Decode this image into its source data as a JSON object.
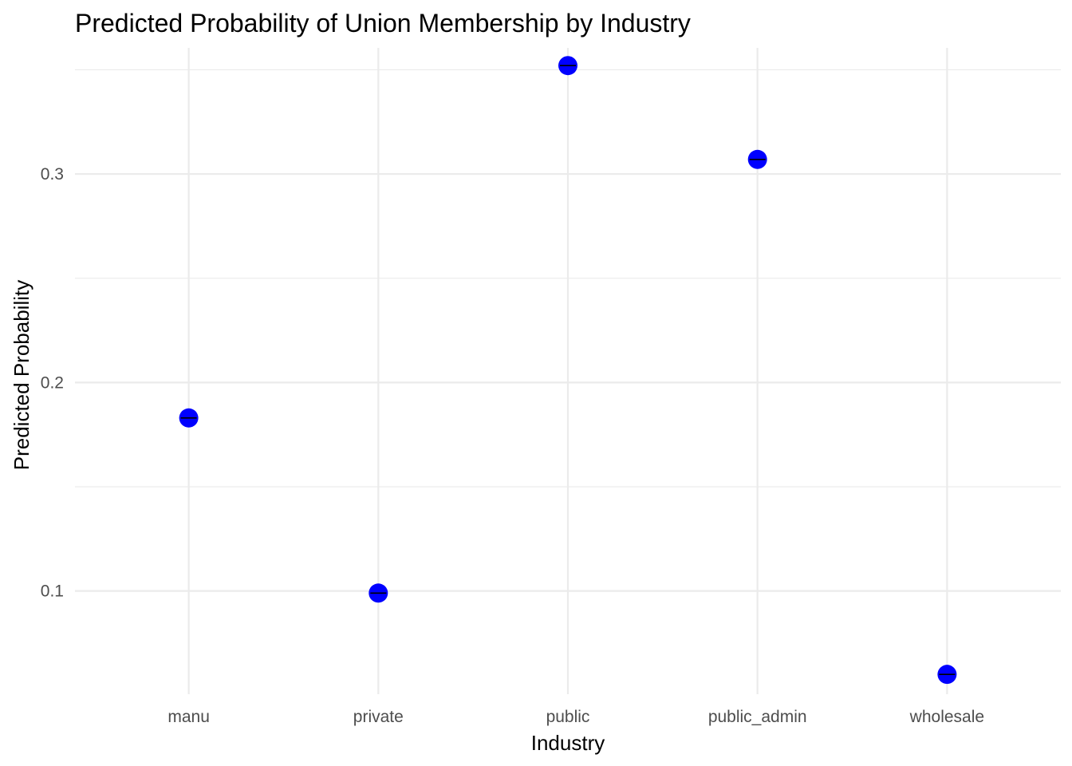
{
  "chart_data": {
    "type": "scatter",
    "title": "Predicted Probability of Union Membership by Industry",
    "xlabel": "Industry",
    "ylabel": "Predicted Probability",
    "categories": [
      "manu",
      "private",
      "public",
      "public_admin",
      "wholesale"
    ],
    "values": [
      0.183,
      0.099,
      0.352,
      0.307,
      0.06
    ],
    "yticks": [
      0.1,
      0.2,
      0.3
    ],
    "ytick_labels": [
      "0.1",
      "0.2",
      "0.3"
    ],
    "ylim": [
      0.0505,
      0.3605
    ],
    "grid": true,
    "legend": "none",
    "colors": {
      "point": "#0000ff",
      "errorbar": "#000000",
      "grid": "#ebebeb",
      "tick_text": "#4d4d4d",
      "background": "#ffffff"
    }
  }
}
